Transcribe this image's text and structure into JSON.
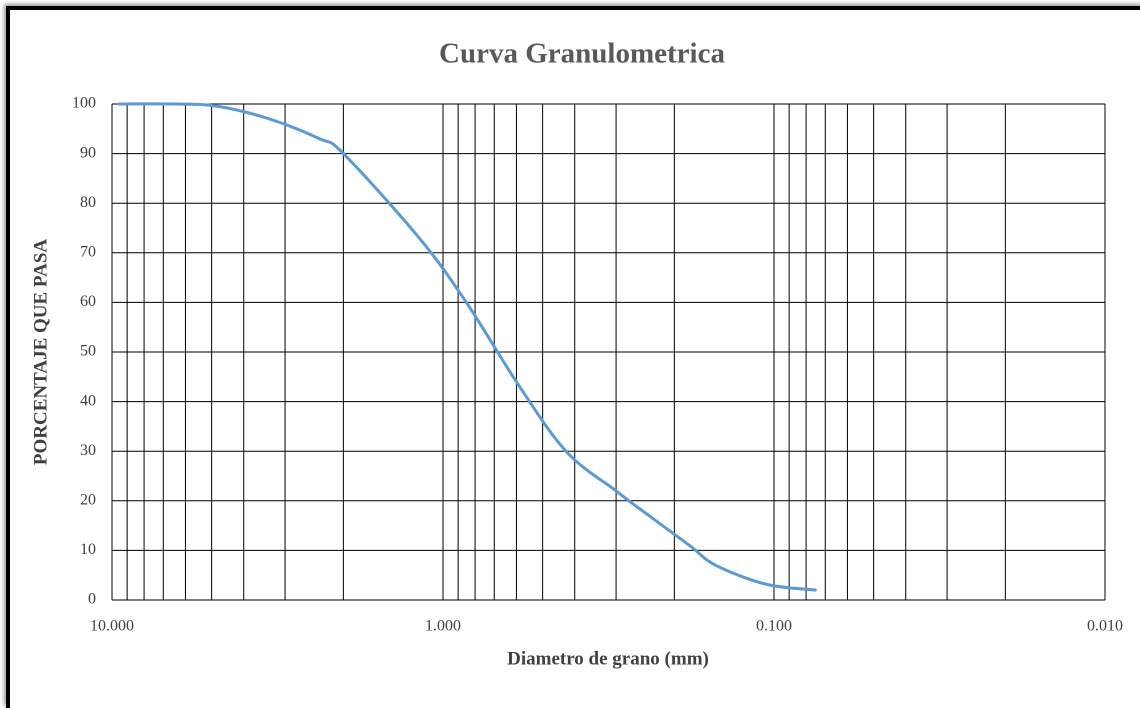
{
  "chart_data": {
    "type": "line",
    "title": "Curva Granulometrica",
    "x_label": "Diametro de grano (mm)",
    "y_label": "PORCENTAJE QUE PASA",
    "x_scale": "log",
    "x_reversed": true,
    "xlim": [
      10,
      0.01
    ],
    "xticks": [
      {
        "value": 10,
        "label": "10.000"
      },
      {
        "value": 1,
        "label": "1.000"
      },
      {
        "value": 0.1,
        "label": "0.100"
      },
      {
        "value": 0.01,
        "label": "0.010"
      }
    ],
    "xminor_ticks": [
      9,
      8,
      7,
      6,
      5,
      4,
      3,
      2,
      0.9,
      0.8,
      0.7,
      0.6,
      0.5,
      0.4,
      0.3,
      0.2,
      0.09,
      0.08,
      0.07,
      0.06,
      0.05,
      0.04,
      0.03,
      0.02
    ],
    "ylim": [
      0,
      100
    ],
    "yticks": [
      0,
      10,
      20,
      30,
      40,
      50,
      60,
      70,
      80,
      90,
      100
    ],
    "grid": true,
    "series": [
      {
        "name": "Curva",
        "color": "#5b9bd5",
        "x": [
          9.5,
          6.3,
          4.75,
          3.35,
          2.36,
          2.0,
          1.18,
          0.85,
          0.6,
          0.425,
          0.3,
          0.25,
          0.18,
          0.15,
          0.106,
          0.075
        ],
        "values": [
          100,
          100,
          99.5,
          97,
          93,
          90,
          73,
          60,
          44,
          30,
          22,
          18,
          11,
          7,
          3.2,
          2
        ]
      }
    ]
  }
}
